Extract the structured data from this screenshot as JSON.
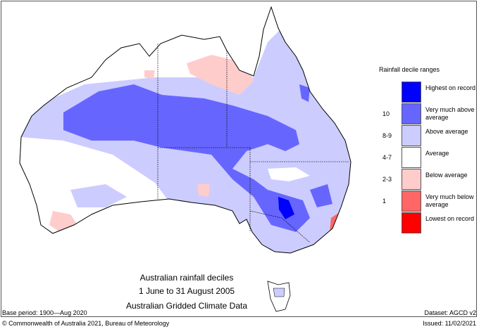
{
  "title_lines": [
    "Australian rainfall deciles",
    "1 June to 31 August 2005",
    "Australian Gridded Climate Data"
  ],
  "base_period": "Base period: 1900—Aug 2020",
  "dataset": "Dataset: AGCD v2",
  "copyright": "© Commonwealth of Australia 2021, Bureau of Meteorology",
  "issued": "Issued: 11/02/2021",
  "legend": {
    "title": "Rainfall decile ranges",
    "items": [
      {
        "decile": "",
        "label": "Highest on record",
        "color": "#0000ff"
      },
      {
        "decile": "10",
        "label": "Very much above average",
        "color": "#6666ff"
      },
      {
        "decile": "8-9",
        "label": "Above average",
        "color": "#ccccff"
      },
      {
        "decile": "4-7",
        "label": "Average",
        "color": "#ffffff"
      },
      {
        "decile": "2-3",
        "label": "Below average",
        "color": "#ffcccc"
      },
      {
        "decile": "1",
        "label": "Very much below average",
        "color": "#ff6666"
      },
      {
        "decile": "",
        "label": "Lowest on record",
        "color": "#ff0000"
      }
    ]
  }
}
